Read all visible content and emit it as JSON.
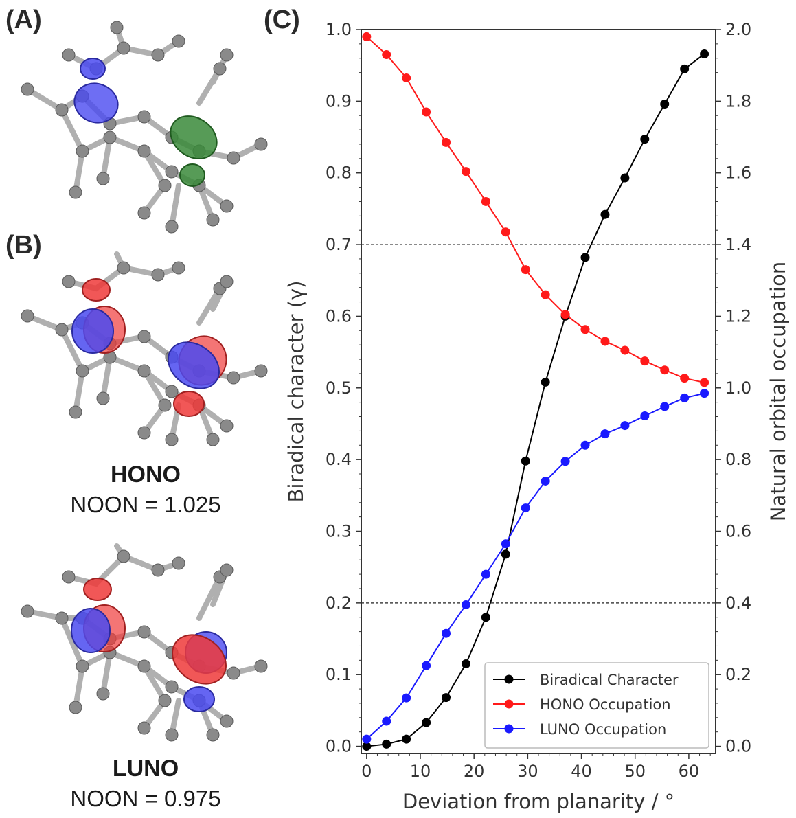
{
  "panels": {
    "a": "(A)",
    "b": "(B)",
    "c": "(C)"
  },
  "orbitals": {
    "hono": {
      "title": "HONO",
      "noon": "NOON = 1.025"
    },
    "luno": {
      "title": "LUNO",
      "noon": "NOON = 0.975"
    }
  },
  "colors": {
    "biradical": "#000000",
    "hono": "#ff1a1a",
    "luno": "#1a1aff",
    "atom": "#8a8a8a",
    "lobe_blue": "#4a4af0",
    "lobe_red": "#ef3a3a",
    "lobe_green": "#3a8a3a"
  },
  "chart_data": {
    "type": "line",
    "xlabel": "Deviation from planarity / °",
    "ylabel": "Biradical character (γ)",
    "y2label": "Natural orbital occupation",
    "xlim": [
      -1,
      65
    ],
    "ylim": [
      -0.01,
      1.0
    ],
    "y2lim": [
      -0.02,
      2.0
    ],
    "xticks": [
      0,
      10,
      20,
      30,
      40,
      50,
      60
    ],
    "yticks": [
      0.0,
      0.1,
      0.2,
      0.3,
      0.4,
      0.5,
      0.6,
      0.7,
      0.8,
      0.9,
      1.0
    ],
    "y2ticks": [
      0.0,
      0.2,
      0.4,
      0.6,
      0.8,
      1.0,
      1.2,
      1.4,
      1.6,
      1.8,
      2.0
    ],
    "ytick_labels": [
      "0.0",
      "0.1",
      "0.2",
      "0.3",
      "0.4",
      "0.5",
      "0.6",
      "0.7",
      "0.8",
      "0.9",
      "1.0"
    ],
    "y2tick_labels": [
      "0.0",
      "0.2",
      "0.4",
      "0.6",
      "0.8",
      "1.0",
      "1.2",
      "1.4",
      "1.6",
      "1.8",
      "2.0"
    ],
    "hlines": [
      0.2,
      0.7
    ],
    "legend_position": "bottom-right",
    "x": [
      0,
      3.7,
      7.4,
      11.1,
      14.8,
      18.5,
      22.2,
      25.9,
      29.6,
      33.3,
      37.0,
      40.7,
      44.4,
      48.1,
      51.8,
      55.5,
      59.2,
      62.9
    ],
    "series": [
      {
        "name": "Biradical Character",
        "axis": "left",
        "color": "#000000",
        "values": [
          0.0,
          0.003,
          0.01,
          0.033,
          0.068,
          0.115,
          0.18,
          0.268,
          0.398,
          0.508,
          0.6,
          0.682,
          0.742,
          0.793,
          0.847,
          0.896,
          0.945,
          0.966
        ]
      },
      {
        "name": "HONO Occupation",
        "axis": "right",
        "color": "#ff1a1a",
        "values": [
          1.98,
          1.93,
          1.865,
          1.77,
          1.685,
          1.604,
          1.52,
          1.435,
          1.33,
          1.26,
          1.205,
          1.163,
          1.13,
          1.105,
          1.075,
          1.05,
          1.027,
          1.015
        ]
      },
      {
        "name": "LUNO Occupation",
        "axis": "right",
        "color": "#1a1aff",
        "values": [
          0.02,
          0.07,
          0.135,
          0.225,
          0.315,
          0.395,
          0.48,
          0.565,
          0.665,
          0.74,
          0.795,
          0.84,
          0.872,
          0.895,
          0.922,
          0.948,
          0.972,
          0.985
        ]
      }
    ]
  }
}
